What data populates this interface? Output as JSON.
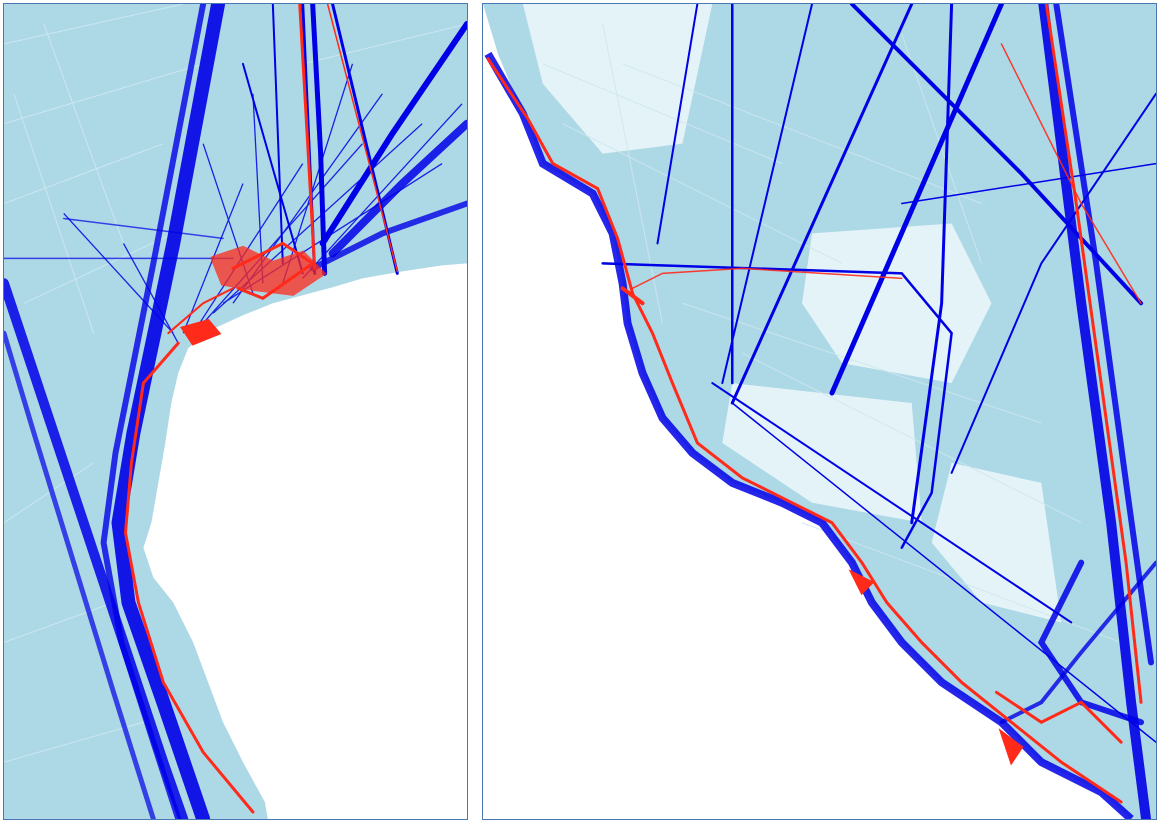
{
  "figure": {
    "panels": [
      {
        "id": "left",
        "content": "vessel-track-map"
      },
      {
        "id": "right",
        "content": "vessel-track-map"
      }
    ],
    "colors": {
      "sea_track_background": "#add8e6",
      "track_dense": "#0000e6",
      "track_highlight": "#ff2a1a",
      "land": "#ffffff",
      "panel_border": "#4a78b5"
    },
    "legend": null,
    "labels": []
  }
}
